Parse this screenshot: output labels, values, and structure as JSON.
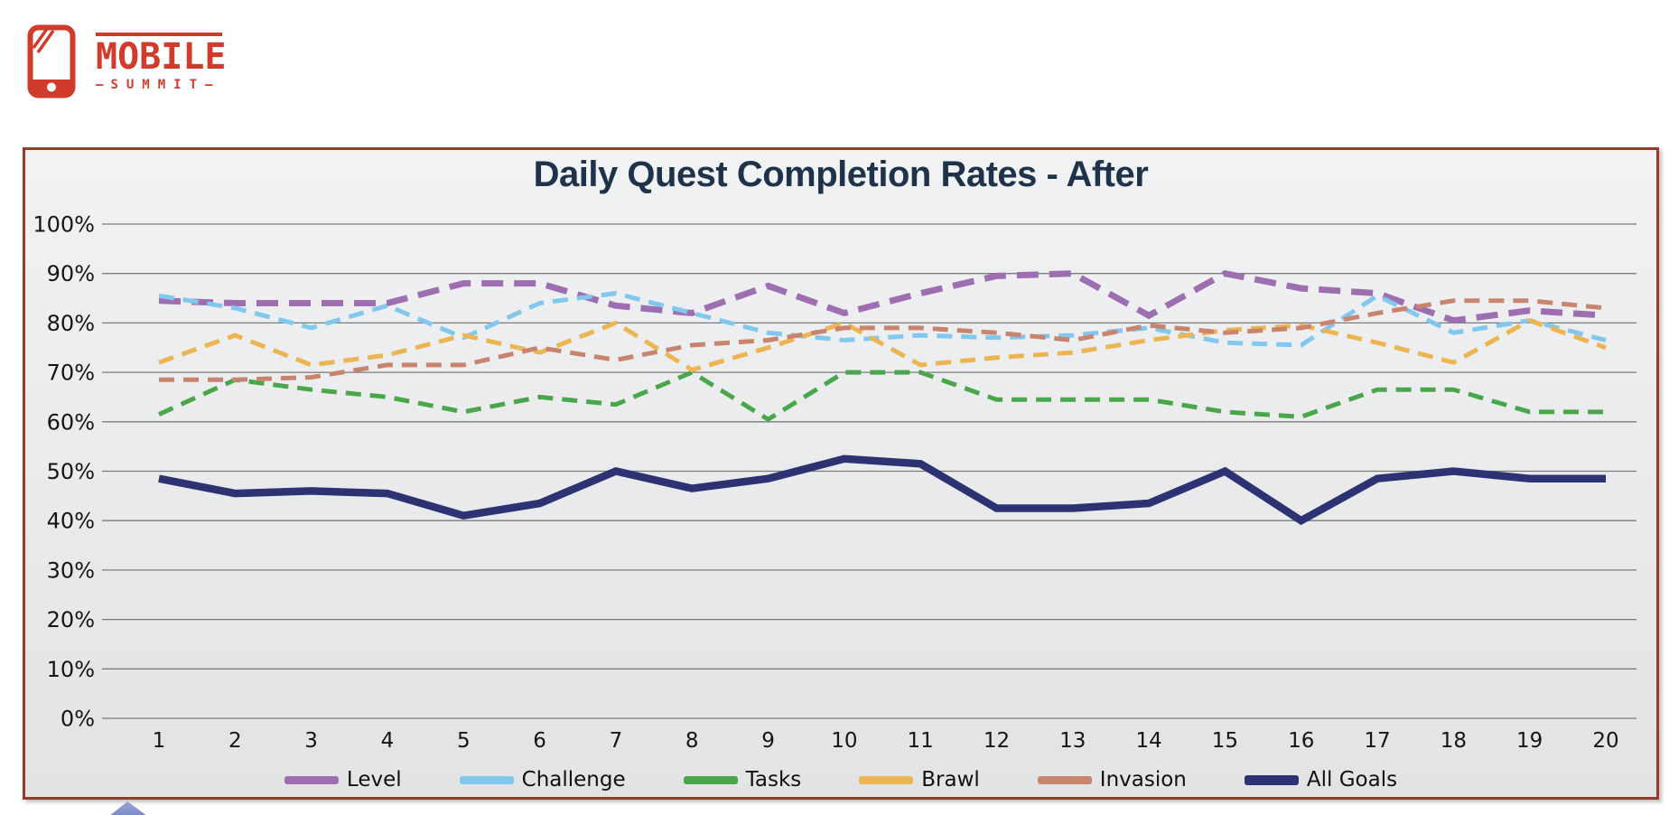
{
  "logo": {
    "brand": "MOBILE",
    "sub": "SUMMIT",
    "dash": "—",
    "color": "#d23b2c"
  },
  "panel": {
    "border_color": "#9b392c"
  },
  "chart_data": {
    "type": "line",
    "title": "Daily Quest Completion Rates - After",
    "title_color": "#1e3349",
    "x": [
      1,
      2,
      3,
      4,
      5,
      6,
      7,
      8,
      9,
      10,
      11,
      12,
      13,
      14,
      15,
      16,
      17,
      18,
      19,
      20
    ],
    "xlabel": "",
    "ylabel": "",
    "ylim": [
      0,
      100
    ],
    "y_tick_step": 10,
    "y_tick_suffix": "%",
    "grid": true,
    "grid_color": "#7b7b7b",
    "legend_position": "bottom",
    "series": [
      {
        "name": "Level",
        "color": "#9e6fb0",
        "dashed": true,
        "width": 7,
        "values": [
          84.5,
          84,
          84,
          84,
          88,
          88,
          83.5,
          82,
          87.5,
          82,
          86,
          89.5,
          90,
          81.5,
          90,
          87,
          86,
          80.5,
          82.5,
          81.5
        ]
      },
      {
        "name": "Challenge",
        "color": "#82c7ee",
        "dashed": true,
        "width": 5,
        "values": [
          85.5,
          83,
          79,
          83.5,
          77,
          84,
          86,
          82,
          78,
          76.5,
          77.5,
          77,
          77.5,
          79,
          76,
          75.5,
          85.5,
          78,
          80.5,
          76.5
        ]
      },
      {
        "name": "Tasks",
        "color": "#4aa64a",
        "dashed": true,
        "width": 5,
        "values": [
          61.5,
          68.5,
          66.5,
          65,
          62,
          65,
          63.5,
          70,
          60.5,
          70,
          70,
          64.5,
          64.5,
          64.5,
          62,
          61,
          66.5,
          66.5,
          62,
          62
        ]
      },
      {
        "name": "Brawl",
        "color": "#edb551",
        "dashed": true,
        "width": 5,
        "values": [
          72,
          77.5,
          71.5,
          73.5,
          77.5,
          74,
          80,
          70.5,
          75,
          80,
          71.5,
          73,
          74,
          76.5,
          78.5,
          79.5,
          76,
          72,
          80.5,
          75
        ]
      },
      {
        "name": "Invasion",
        "color": "#c8846f",
        "dashed": true,
        "width": 5,
        "values": [
          68.5,
          68.5,
          69,
          71.5,
          71.5,
          75,
          72.5,
          75.5,
          76.5,
          79,
          79,
          78,
          76.5,
          79.5,
          78,
          79,
          82,
          84.5,
          84.5,
          83
        ]
      },
      {
        "name": "All Goals",
        "color": "#2d3272",
        "dashed": false,
        "width": 8.5,
        "values": [
          48.5,
          45.5,
          46,
          45.5,
          41,
          43.5,
          50,
          46.5,
          48.5,
          52.5,
          51.5,
          42.5,
          42.5,
          43.5,
          50,
          40,
          48.5,
          50,
          48.5,
          48.5
        ]
      }
    ]
  }
}
